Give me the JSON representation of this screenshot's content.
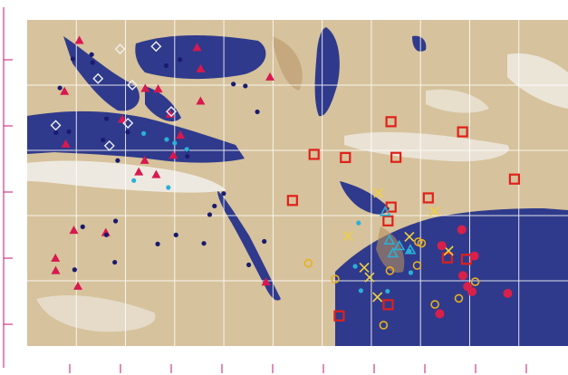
{
  "map": {
    "description_colors": {
      "sea": "#2f3a8c",
      "land_light": "#d8c7a4",
      "land_dark": "#b89b6e",
      "cloud": "#f4f4f2",
      "grid": "#ffffff",
      "axis_tick": "#c8146e"
    },
    "grid": {
      "columns": 11,
      "rows": 5
    },
    "x_ticks": 11,
    "y_ticks": 5,
    "marker_groups": [
      {
        "name": "magenta-triangle",
        "shape": "triangle",
        "color": "#d8184e",
        "count": 22
      },
      {
        "name": "red-square",
        "shape": "square",
        "color": "#e0201a",
        "count": 14
      },
      {
        "name": "navy-dot",
        "shape": "dot",
        "color": "#1a1a6e",
        "count": 30
      },
      {
        "name": "white-diamond",
        "shape": "diamond",
        "color": "#f0f0f0",
        "count": 8
      },
      {
        "name": "cyan-dot",
        "shape": "dot",
        "color": "#2ab0d8",
        "count": 12
      },
      {
        "name": "cyan-triangle",
        "shape": "triangle-open",
        "color": "#2ab0d8",
        "count": 5
      },
      {
        "name": "yellow-circle",
        "shape": "circle-open",
        "color": "#e8b020",
        "count": 10
      },
      {
        "name": "yellow-cross",
        "shape": "cross",
        "color": "#f0d040",
        "count": 8
      },
      {
        "name": "red-dot",
        "shape": "dot",
        "color": "#d8204a",
        "count": 8
      }
    ]
  }
}
